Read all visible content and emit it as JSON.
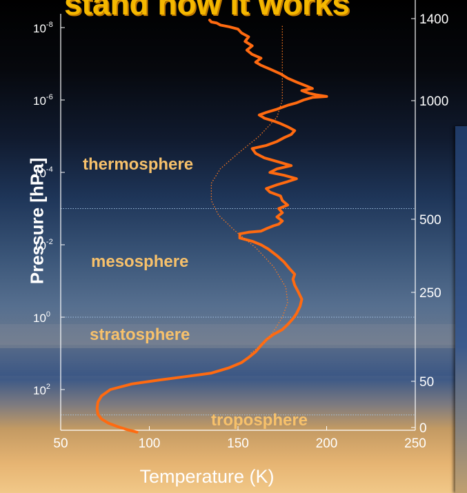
{
  "headline": "stand how it works",
  "layers": {
    "thermosphere": "thermosphere",
    "mesosphere": "mesosphere",
    "stratosphere": "stratosphere",
    "troposphere": "troposphere"
  },
  "chart_data": {
    "type": "line",
    "xlabel": "Temperature (K)",
    "ylabel": "Pressure  [hPa]",
    "xlim": [
      50,
      250
    ],
    "x_ticks": [
      "50",
      "100",
      "150",
      "200",
      "250"
    ],
    "y_axis": {
      "scale": "log",
      "reversed": true,
      "tick_values": [
        1e-08,
        1e-06,
        0.0001,
        0.01,
        1,
        100
      ],
      "tick_labels": [
        {
          "base": "10",
          "exp": "-8"
        },
        {
          "base": "10",
          "exp": "-6"
        },
        {
          "base": "10",
          "exp": "-4"
        },
        {
          "base": "10",
          "exp": "-2"
        },
        {
          "base": "10",
          "exp": "0"
        },
        {
          "base": "10",
          "exp": "2"
        }
      ]
    },
    "y2_axis": {
      "label": "",
      "ticks": [
        "0",
        "50",
        "250",
        "500",
        "1000",
        "1400"
      ]
    },
    "boundaries_hpa": [
      0.001,
      1,
      500
    ],
    "colors": {
      "measured": "#ff6a10",
      "model": "#ff7a20",
      "boundary": "#aaccee",
      "axis": "#ffffff",
      "layer_label": "#f7c16b"
    },
    "series": [
      {
        "style": "thick",
        "points": [
          [
            93,
            1500
          ],
          [
            88,
            1300
          ],
          [
            82,
            1050
          ],
          [
            77,
            850
          ],
          [
            73,
            650
          ],
          [
            71,
            480
          ],
          [
            70.5,
            330
          ],
          [
            71,
            220
          ],
          [
            73,
            150
          ],
          [
            78,
            100
          ],
          [
            90,
            70
          ],
          [
            105,
            55
          ],
          [
            120,
            44
          ],
          [
            135,
            35
          ],
          [
            145,
            25
          ],
          [
            152,
            18
          ],
          [
            156,
            13
          ],
          [
            160,
            9
          ],
          [
            163,
            6
          ],
          [
            166,
            4.2
          ],
          [
            170,
            3
          ],
          [
            175,
            2.2
          ],
          [
            178,
            1.6
          ],
          [
            181,
            1.1
          ],
          [
            183,
            0.8
          ],
          [
            185,
            0.5
          ],
          [
            186,
            0.32
          ],
          [
            184,
            0.2
          ],
          [
            182,
            0.13
          ],
          [
            181,
            0.09
          ],
          [
            182,
            0.065
          ],
          [
            179,
            0.045
          ],
          [
            176,
            0.03
          ],
          [
            172,
            0.02
          ],
          [
            167,
            0.013
          ],
          [
            163,
            0.01
          ],
          [
            158,
            0.008
          ],
          [
            151,
            0.0065
          ],
          [
            151,
            0.005
          ],
          [
            156,
            0.0045
          ],
          [
            163,
            0.0042
          ],
          [
            166,
            0.0036
          ],
          [
            170,
            0.003
          ],
          [
            173,
            0.0027
          ],
          [
            175,
            0.0022
          ],
          [
            172,
            0.0017
          ],
          [
            175,
            0.0013
          ],
          [
            173,
            0.001
          ],
          [
            178,
            0.0008
          ],
          [
            175,
            0.0006
          ],
          [
            174,
            0.00045
          ],
          [
            168,
            0.00035
          ],
          [
            166,
            0.00028
          ],
          [
            172,
            0.00022
          ],
          [
            178,
            0.00018
          ],
          [
            183,
            0.00015
          ],
          [
            176,
            0.00012
          ],
          [
            168,
            0.0001
          ],
          [
            172,
            8e-05
          ],
          [
            180,
            6.5e-05
          ],
          [
            172,
            5e-05
          ],
          [
            165,
            4e-05
          ],
          [
            160,
            3e-05
          ],
          [
            158,
            2.2e-05
          ],
          [
            166,
            1.8e-05
          ],
          [
            172,
            1.4e-05
          ],
          [
            176,
            1.1e-05
          ],
          [
            180,
            9e-06
          ],
          [
            182,
            7e-06
          ],
          [
            178,
            5.5e-06
          ],
          [
            174,
            4.5e-06
          ],
          [
            170,
            3.8e-06
          ],
          [
            165,
            3.2e-06
          ],
          [
            162,
            2.6e-06
          ],
          [
            166,
            2.2e-06
          ],
          [
            172,
            1.8e-06
          ],
          [
            178,
            1.4e-06
          ],
          [
            183,
            1.2e-06
          ],
          [
            187,
            1e-06
          ],
          [
            192,
            8.5e-07
          ],
          [
            200,
            8e-07
          ],
          [
            194,
            7.2e-07
          ],
          [
            190,
            6.5e-07
          ],
          [
            186,
            5.5e-07
          ],
          [
            192,
            4.8e-07
          ],
          [
            188,
            4e-07
          ],
          [
            183,
            3.2e-07
          ],
          [
            178,
            2.5e-07
          ],
          [
            174,
            1.9e-07
          ],
          [
            168,
            1.4e-07
          ],
          [
            163,
            1.1e-07
          ],
          [
            160,
            9e-08
          ],
          [
            163,
            7e-08
          ],
          [
            158,
            5.5e-08
          ],
          [
            155,
            4.2e-08
          ],
          [
            158,
            3.2e-08
          ],
          [
            154,
            2.4e-08
          ],
          [
            156,
            1.8e-08
          ],
          [
            152,
            1.4e-08
          ],
          [
            150,
            1.1e-08
          ],
          [
            145,
            9.5e-09
          ],
          [
            140,
            8.5e-09
          ],
          [
            138,
            7.5e-09
          ],
          [
            135,
            7e-09
          ],
          [
            134,
            6.2e-09
          ]
        ]
      },
      {
        "style": "dotted",
        "points": [
          [
            175,
            9e-09
          ],
          [
            175,
            1e-07
          ],
          [
            175,
            1e-06
          ],
          [
            172,
            3e-06
          ],
          [
            162,
            1e-05
          ],
          [
            150,
            3e-05
          ],
          [
            140,
            8e-05
          ],
          [
            135,
            0.0002
          ],
          [
            135,
            0.0006
          ],
          [
            139,
            0.0015
          ],
          [
            148,
            0.004
          ],
          [
            160,
            0.012
          ],
          [
            170,
            0.04
          ],
          [
            177,
            0.15
          ],
          [
            178,
            0.4
          ],
          [
            175,
            1
          ],
          [
            170,
            2.5
          ],
          [
            165,
            5
          ],
          [
            157,
            10
          ]
        ]
      }
    ]
  }
}
